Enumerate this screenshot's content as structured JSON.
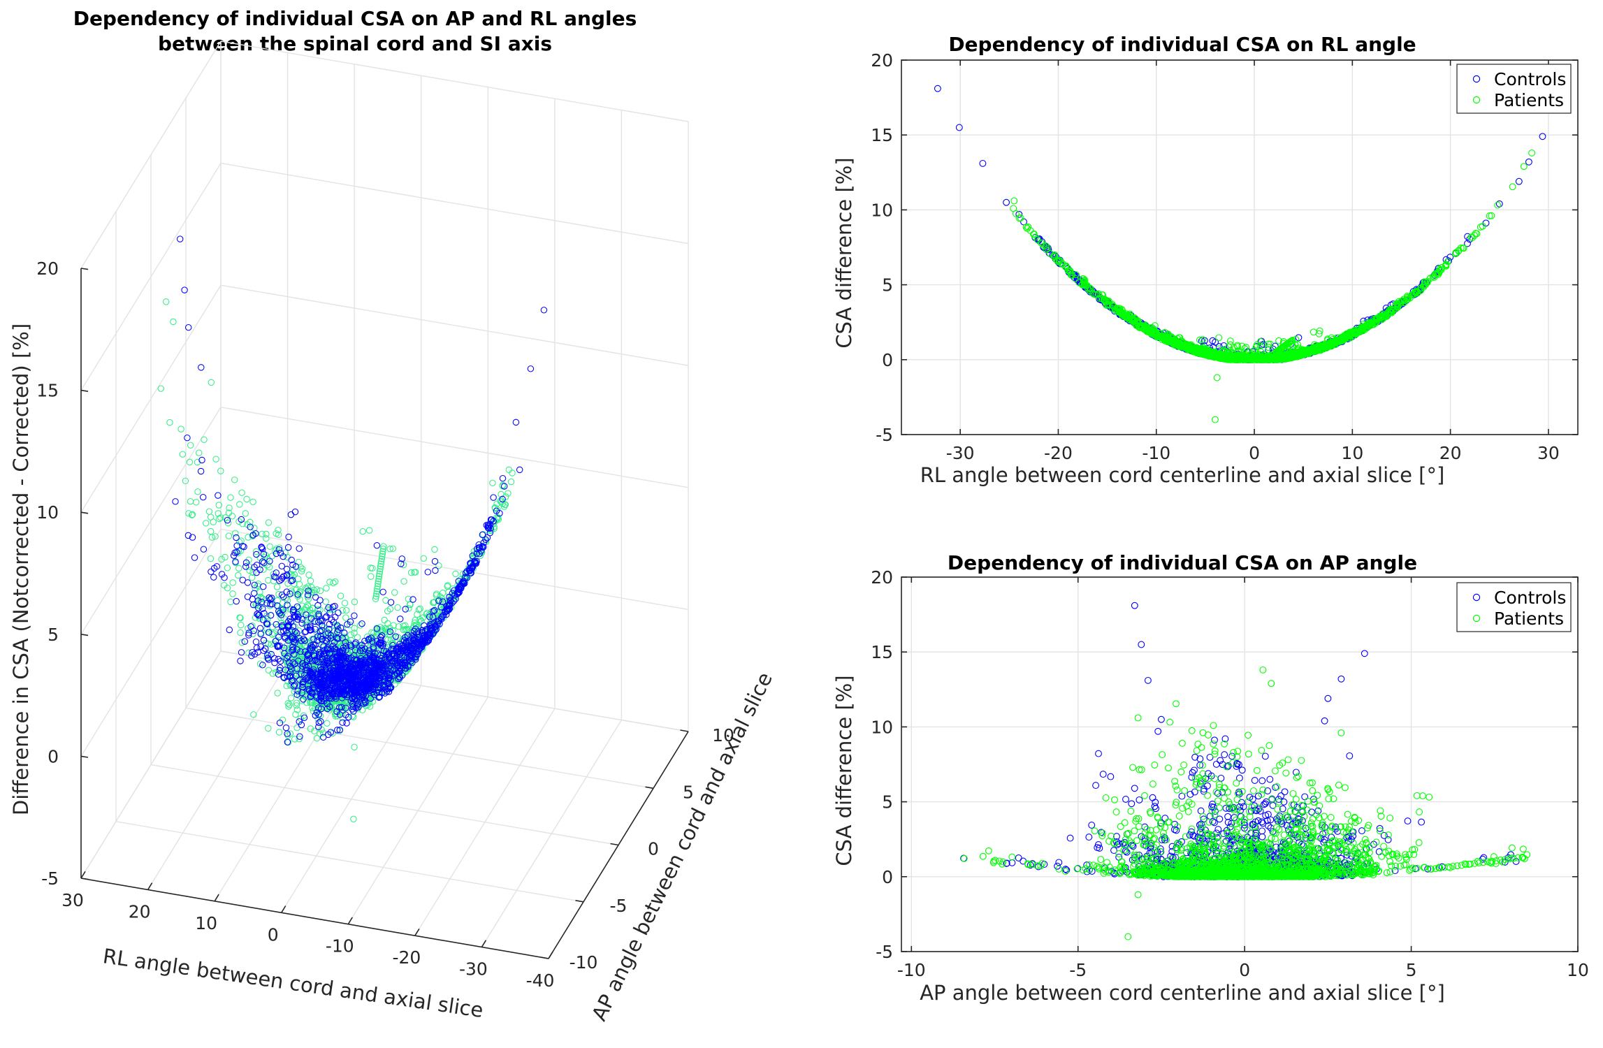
{
  "colors": {
    "controls": "#0000ff",
    "patients": "#00ff00",
    "axis": "#262626",
    "grid": "#e3e3e3"
  },
  "chart_data": [
    {
      "id": "plot3d",
      "type": "scatter",
      "title": [
        "Dependency of individual CSA on AP and RL angles",
        "between the spinal cord and SI axis"
      ],
      "xlabel": "RL angle between cord and axial slice",
      "ylabel": "AP angle between cord and axial slice",
      "zlabel": "Difference in CSA (Notcorrected - Corrected) [%]",
      "xlim": [
        30,
        -40
      ],
      "ylim": [
        -10,
        10
      ],
      "zlim": [
        -5,
        20
      ],
      "xticks": [
        "30",
        "20",
        "10",
        "0",
        "-10",
        "-20",
        "-30",
        "-40"
      ],
      "yticks": [
        "-10",
        "-5",
        "0",
        "5",
        "10"
      ],
      "zticks": [
        "-5",
        "0",
        "5",
        "10",
        "15",
        "20"
      ],
      "series": [
        {
          "name": "Controls",
          "note": "CSA difference ≈ 0.0165·(RL² + AP²), RL in [-32, 30], AP in [-9.6, 8.5]"
        },
        {
          "name": "Patients",
          "note": "same relation, outliers at (-4, -1.2) and (-4, -4)"
        }
      ]
    },
    {
      "id": "plotRL",
      "type": "scatter",
      "title": "Dependency of individual CSA on RL angle",
      "xlabel": "RL angle between cord centerline and axial slice [°]",
      "ylabel": "CSA difference [%]",
      "xlim": [
        -36,
        33
      ],
      "ylim": [
        -5,
        20
      ],
      "xticks": [
        "-30",
        "-20",
        "-10",
        "0",
        "10",
        "20",
        "30"
      ],
      "yticks": [
        "-5",
        "0",
        "5",
        "10",
        "15",
        "20"
      ],
      "legend": [
        "Controls",
        "Patients"
      ],
      "legend_position": "top-right",
      "highlight_points": [
        {
          "series": "Controls",
          "x": -32.3,
          "y": 18.1
        },
        {
          "series": "Controls",
          "x": -30.1,
          "y": 15.5
        },
        {
          "series": "Controls",
          "x": -27.7,
          "y": 13.1
        },
        {
          "series": "Controls",
          "x": -25.3,
          "y": 10.5
        },
        {
          "series": "Controls",
          "x": 29.4,
          "y": 14.9
        },
        {
          "series": "Controls",
          "x": 28.0,
          "y": 13.2
        },
        {
          "series": "Patients",
          "x": 28.3,
          "y": 13.8
        },
        {
          "series": "Patients",
          "x": -4.0,
          "y": -4.0
        },
        {
          "series": "Patients",
          "x": -3.8,
          "y": -1.2
        }
      ]
    },
    {
      "id": "plotAP",
      "type": "scatter",
      "title": "Dependency of individual CSA on AP angle",
      "xlabel": "AP angle between cord centerline and axial slice [°]",
      "ylabel": "CSA difference [%]",
      "xlim": [
        -10.3,
        10
      ],
      "ylim": [
        -5,
        20
      ],
      "xticks": [
        "-10",
        "-5",
        "0",
        "5",
        "10"
      ],
      "yticks": [
        "-5",
        "0",
        "5",
        "10",
        "15",
        "20"
      ],
      "legend": [
        "Controls",
        "Patients"
      ],
      "legend_position": "top-right",
      "highlight_points": [
        {
          "series": "Controls",
          "x": -3.3,
          "y": 18.1
        },
        {
          "series": "Controls",
          "x": -3.1,
          "y": 15.5
        },
        {
          "series": "Controls",
          "x": -2.9,
          "y": 13.1
        },
        {
          "series": "Controls",
          "x": 3.6,
          "y": 14.9
        },
        {
          "series": "Controls",
          "x": 2.9,
          "y": 13.3
        },
        {
          "series": "Patients",
          "x": 0.55,
          "y": 13.8
        },
        {
          "series": "Patients",
          "x": -3.5,
          "y": -4.0
        },
        {
          "series": "Patients",
          "x": -3.2,
          "y": -1.2
        },
        {
          "series": "Patients",
          "x": 8.3,
          "y": 1.3
        }
      ]
    }
  ]
}
